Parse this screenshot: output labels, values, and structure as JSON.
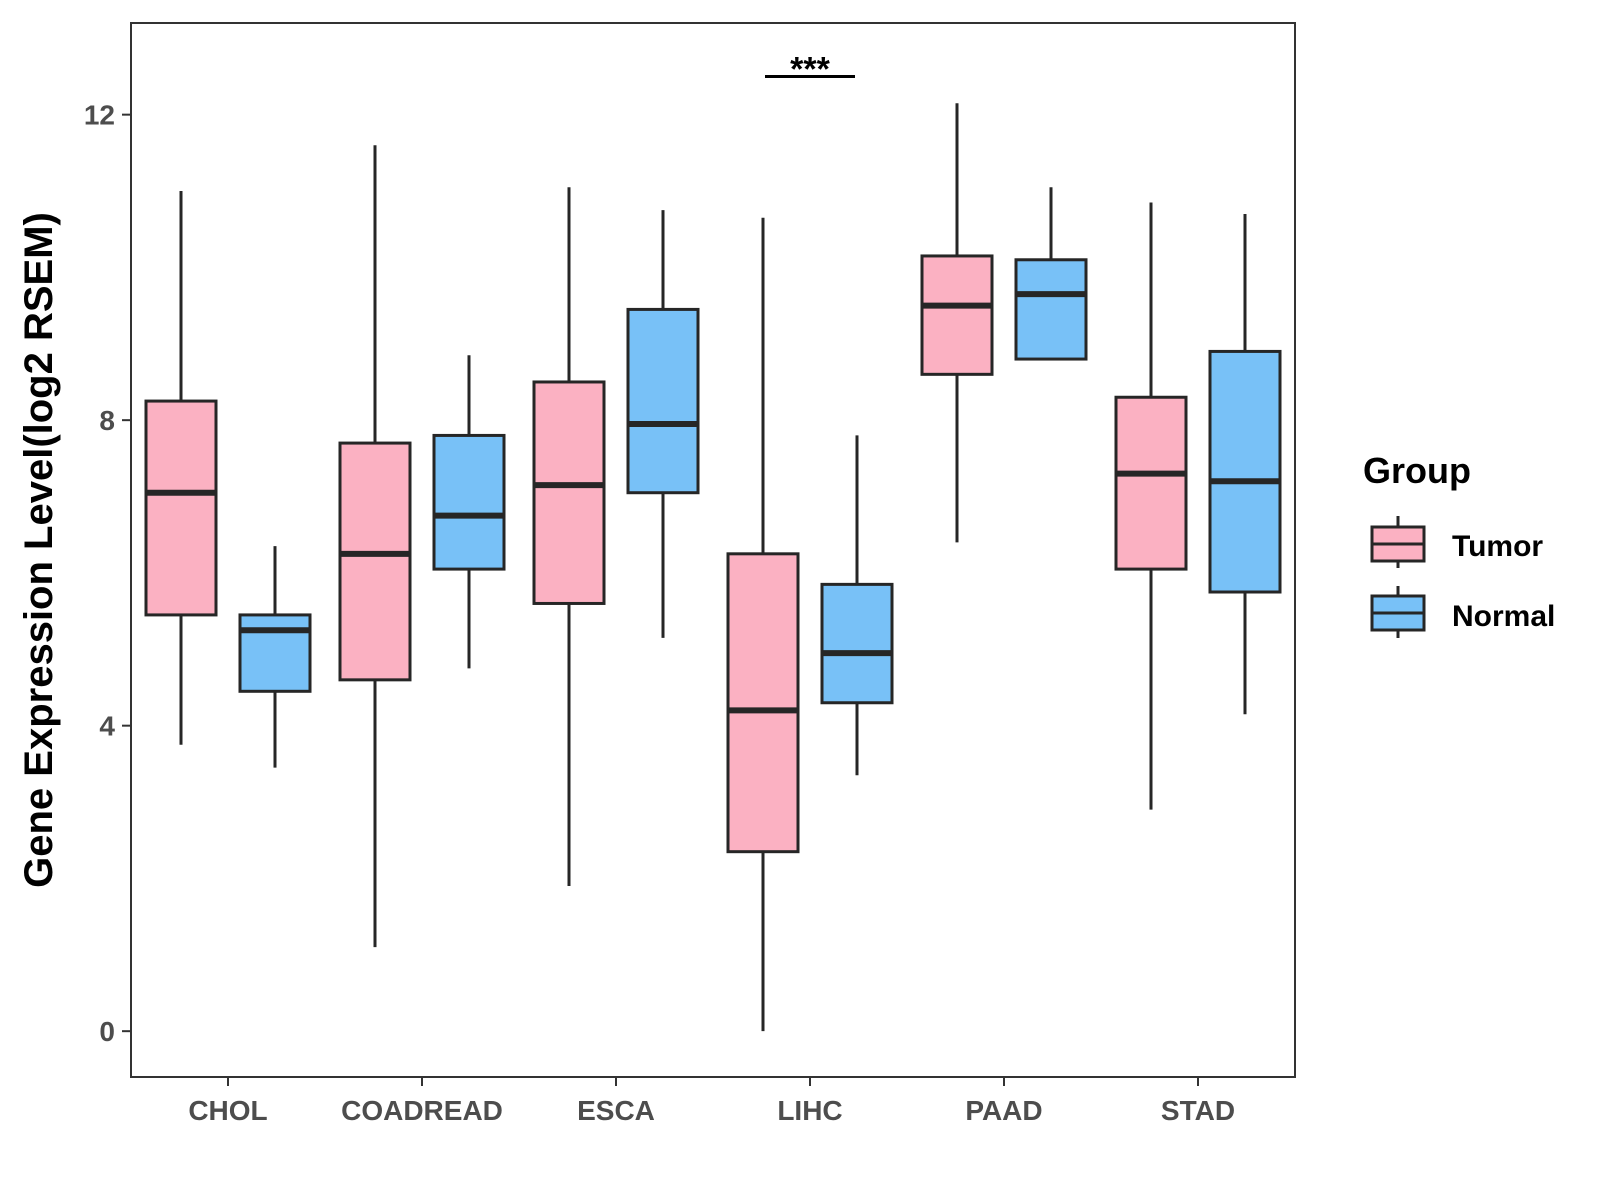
{
  "chart_data": {
    "type": "boxplot",
    "title": "",
    "xlabel": "",
    "ylabel": "Gene Expression Level(log2 RSEM)",
    "ylim": [
      -0.6,
      13.2
    ],
    "yticks": [
      0,
      4,
      8,
      12
    ],
    "grid": false,
    "categories": [
      "CHOL",
      "COADREAD",
      "ESCA",
      "LIHC",
      "PAAD",
      "STAD"
    ],
    "legend": {
      "title": "Group",
      "position": "right",
      "entries": [
        {
          "name": "Tumor",
          "color": "#fbb1c2"
        },
        {
          "name": "Normal",
          "color": "#78c1f7"
        }
      ]
    },
    "series": [
      {
        "name": "Tumor",
        "color": "#fbb1c2",
        "boxes": [
          {
            "category": "CHOL",
            "min": 3.75,
            "q1": 5.45,
            "median": 7.05,
            "q3": 8.25,
            "max": 11.0
          },
          {
            "category": "COADREAD",
            "min": 1.1,
            "q1": 4.6,
            "median": 6.25,
            "q3": 7.7,
            "max": 11.6
          },
          {
            "category": "ESCA",
            "min": 1.9,
            "q1": 5.6,
            "median": 7.15,
            "q3": 8.5,
            "max": 11.05
          },
          {
            "category": "LIHC",
            "min": 0.0,
            "q1": 2.35,
            "median": 4.2,
            "q3": 6.25,
            "max": 10.65
          },
          {
            "category": "PAAD",
            "min": 6.4,
            "q1": 8.6,
            "median": 9.5,
            "q3": 10.15,
            "max": 12.15
          },
          {
            "category": "STAD",
            "min": 2.9,
            "q1": 6.05,
            "median": 7.3,
            "q3": 8.3,
            "max": 10.85
          }
        ]
      },
      {
        "name": "Normal",
        "color": "#78c1f7",
        "boxes": [
          {
            "category": "CHOL",
            "min": 3.45,
            "q1": 4.45,
            "median": 5.25,
            "q3": 5.45,
            "max": 6.35
          },
          {
            "category": "COADREAD",
            "min": 4.75,
            "q1": 6.05,
            "median": 6.75,
            "q3": 7.8,
            "max": 8.85
          },
          {
            "category": "ESCA",
            "min": 5.15,
            "q1": 7.05,
            "median": 7.95,
            "q3": 9.45,
            "max": 10.75
          },
          {
            "category": "LIHC",
            "min": 3.35,
            "q1": 4.3,
            "median": 4.95,
            "q3": 5.85,
            "max": 7.8
          },
          {
            "category": "PAAD",
            "min": 8.8,
            "q1": 8.8,
            "median": 9.65,
            "q3": 10.1,
            "max": 11.05
          },
          {
            "category": "STAD",
            "min": 4.15,
            "q1": 5.75,
            "median": 7.2,
            "q3": 8.9,
            "max": 10.7
          }
        ]
      }
    ],
    "annotations": [
      {
        "category": "LIHC",
        "label": "***",
        "y": 12.5
      }
    ]
  }
}
